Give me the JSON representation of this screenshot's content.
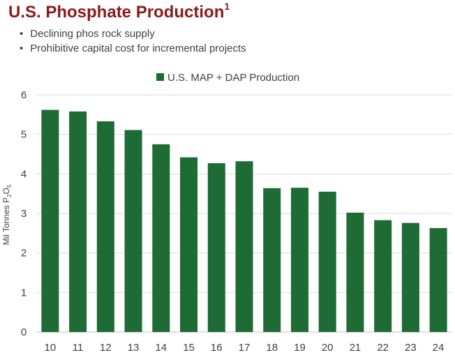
{
  "header": {
    "title": "U.S. Phosphate Production",
    "title_footnote": "1",
    "bullets": [
      "Declining phos rock supply",
      "Prohibitive capital cost for incremental projects"
    ]
  },
  "colors": {
    "title": "#8b1a1a",
    "bar": "#1e6b35",
    "grid": "#d9d9d9",
    "text": "#404040"
  },
  "chart_data": {
    "type": "bar",
    "categories": [
      "10",
      "11",
      "12",
      "13",
      "14",
      "15",
      "16",
      "17",
      "18",
      "19",
      "20",
      "21",
      "22",
      "23",
      "24"
    ],
    "series": [
      {
        "name": "U.S. MAP + DAP Production",
        "values": [
          5.62,
          5.58,
          5.33,
          5.11,
          4.75,
          4.42,
          4.27,
          4.32,
          3.64,
          3.65,
          3.55,
          3.02,
          2.83,
          2.76,
          2.63
        ]
      }
    ],
    "title": "",
    "xlabel": "",
    "ylabel": "Mil Tonnes P2O5",
    "ylabel_parts": {
      "main": "Mil Tonnes P",
      "sub1": "2",
      "mid": "O",
      "sub2": "5"
    },
    "ylim": [
      0,
      6
    ],
    "yticks": [
      "0",
      "1",
      "2",
      "3",
      "4",
      "5",
      "6"
    ],
    "grid": true,
    "legend": "top-center"
  }
}
